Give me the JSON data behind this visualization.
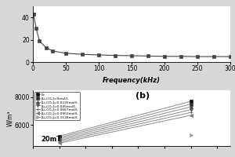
{
  "top_plot": {
    "xlabel": "Frequency(kHz)",
    "xlim": [
      0,
      300
    ],
    "ylim": [
      0,
      50
    ],
    "yticks": [
      0,
      20,
      40
    ],
    "xticks": [
      0,
      50,
      100,
      150,
      200,
      250,
      300
    ],
    "line1_x": [
      1,
      5,
      10,
      20,
      30,
      50,
      75,
      100,
      125,
      150,
      175,
      200,
      225,
      250,
      275,
      300
    ],
    "line1_y": [
      43,
      30,
      19,
      13,
      10,
      8,
      7,
      6.5,
      6,
      5.8,
      5.5,
      5.2,
      5.2,
      5,
      5,
      5
    ],
    "line_color": "#444444",
    "marker": "s",
    "markersize": 2.5,
    "linewidth": 0.8
  },
  "bottom_plot": {
    "label_b": "(b)",
    "ylabel": "W/m³",
    "ylim": [
      4500,
      8500
    ],
    "yticks": [
      6000,
      8000
    ],
    "annotation": "20mT",
    "legend_labels": [
      "Fe",
      "[Li₂CO₃]=0mol/L",
      "[Li₂CO₃]=0.0226mol/L",
      "[Li₂CO₃]=0.045mol/L",
      "[Li₂CO₃]=0.0667mol/L",
      "[Li₂CO₃]=0.0902mol/L",
      "[Li₂CO₃]=0.1128mol/L"
    ],
    "legend_markers": [
      "s",
      "s",
      "^",
      "v",
      "+",
      "<",
      ">"
    ],
    "series_x": [
      [
        20,
        30
      ],
      [
        20,
        30
      ],
      [
        20,
        30
      ],
      [
        20,
        30
      ],
      [
        20,
        30
      ],
      [
        20,
        30
      ],
      [
        30
      ]
    ],
    "series_y": [
      [
        5200,
        7700
      ],
      [
        5100,
        7500
      ],
      [
        5000,
        7300
      ],
      [
        4900,
        7100
      ],
      [
        4800,
        6900
      ],
      [
        4700,
        6700
      ],
      [
        5300
      ]
    ],
    "series_colors": [
      "#111111",
      "#333333",
      "#444444",
      "#555555",
      "#555555",
      "#777777",
      "#999999"
    ],
    "line_color": "#888888",
    "linewidth": 0.7,
    "markersize": 3,
    "xlim": [
      18,
      33
    ]
  },
  "background_color": "#d8d8d8",
  "plot_bg": "#ffffff"
}
